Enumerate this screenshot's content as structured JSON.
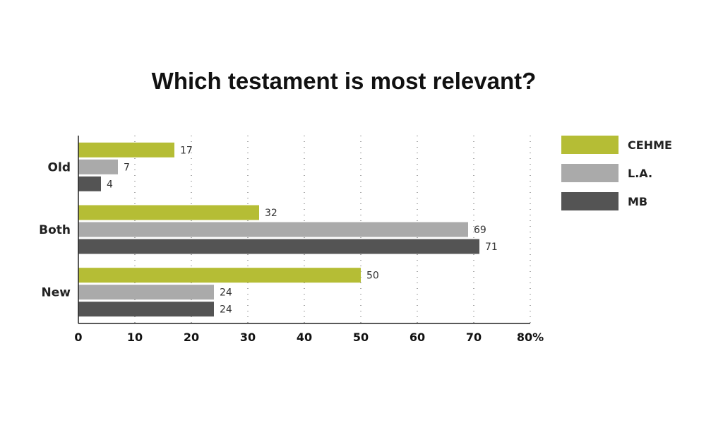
{
  "chart_data": {
    "type": "bar",
    "orientation": "horizontal",
    "title": "Which testament is most relevant?",
    "categories": [
      "Old",
      "Both",
      "New"
    ],
    "series": [
      {
        "name": "CEHME",
        "color": "#b5bd35",
        "values": [
          17,
          32,
          50
        ]
      },
      {
        "name": "L.A.",
        "color": "#aaaaaa",
        "values": [
          7,
          69,
          24
        ]
      },
      {
        "name": "MB",
        "color": "#545454",
        "values": [
          4,
          71,
          24
        ]
      }
    ],
    "xlim": [
      0,
      80
    ],
    "x_ticks": [
      "0",
      "10",
      "20",
      "30",
      "40",
      "50",
      "60",
      "70",
      "80%"
    ],
    "grid": "vertical dotted",
    "legend_position": "right"
  }
}
